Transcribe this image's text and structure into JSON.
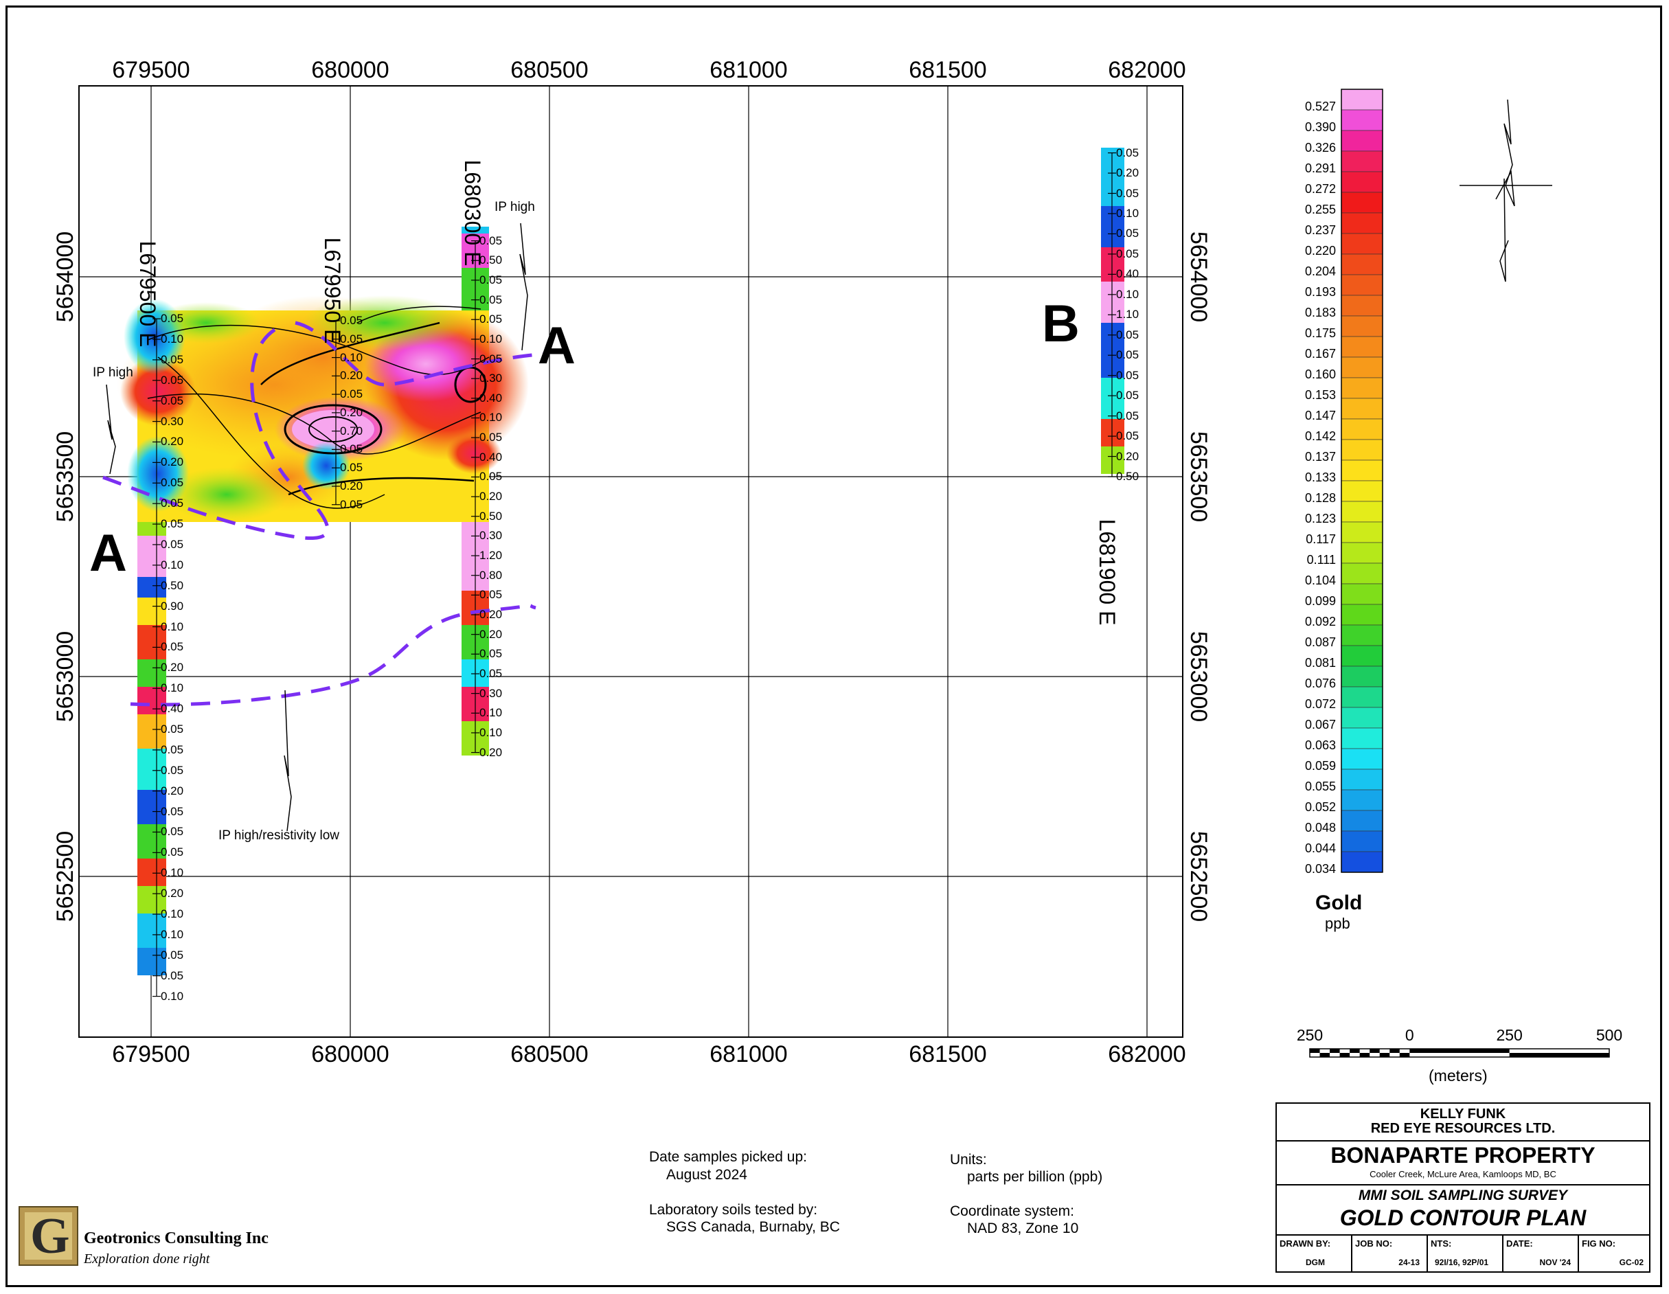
{
  "map": {
    "x_ticks": [
      "679500",
      "680000",
      "680500",
      "681000",
      "681500",
      "682000"
    ],
    "y_ticks": [
      "5654000",
      "5653500",
      "5653000",
      "5652500"
    ],
    "line_labels": [
      "L679500 E",
      "L679950 E",
      "L680300 E",
      "L681900 E"
    ],
    "section_labels": [
      "A",
      "A",
      "B"
    ],
    "annotations": [
      "IP high",
      "IP high",
      "IP high/resistivity low"
    ],
    "gridline_color": "#000000",
    "ip_line_color": "#7b2ff2",
    "lines": {
      "L679500": [
        "0.05",
        "0.10",
        "0.05",
        "0.05",
        "0.05",
        "0.30",
        "0.20",
        "0.20",
        "0.05",
        "0.05",
        "0.05",
        "0.05",
        "0.10",
        "0.50",
        "0.90",
        "0.10",
        "0.05",
        "0.20",
        "0.10",
        "0.40",
        "0.05",
        "0.05",
        "0.05",
        "0.20",
        "0.05",
        "0.05",
        "0.05",
        "0.10",
        "0.20",
        "0.10",
        "0.10",
        "0.05",
        "0.05",
        "0.10"
      ],
      "L679950": [
        "0.05",
        "0.05",
        "0.10",
        "0.20",
        "0.05",
        "0.20",
        "0.70",
        "0.05",
        "0.05",
        "0.20",
        "0.05"
      ],
      "L680300": [
        "0.05",
        "0.50",
        "0.05",
        "0.05",
        "0.05",
        "0.10",
        "0.05",
        "0.30",
        "0.40",
        "0.10",
        "0.05",
        "0.40",
        "0.05",
        "0.20",
        "0.50",
        "0.30",
        "1.20",
        "0.80",
        "0.05",
        "0.20",
        "0.20",
        "0.05",
        "0.05",
        "0.30",
        "0.10",
        "0.10",
        "0.20"
      ],
      "L681900": [
        "0.05",
        "0.20",
        "0.05",
        "0.10",
        "0.05",
        "0.05",
        "0.40",
        "0.10",
        "1.10",
        "0.05",
        "0.05",
        "0.05",
        "0.05",
        "0.05",
        "0.05",
        "0.20",
        "0.50"
      ]
    }
  },
  "legend": {
    "values": [
      "0.527",
      "0.390",
      "0.326",
      "0.291",
      "0.272",
      "0.255",
      "0.237",
      "0.220",
      "0.204",
      "0.193",
      "0.183",
      "0.175",
      "0.167",
      "0.160",
      "0.153",
      "0.147",
      "0.142",
      "0.137",
      "0.133",
      "0.128",
      "0.123",
      "0.117",
      "0.111",
      "0.104",
      "0.099",
      "0.092",
      "0.087",
      "0.081",
      "0.076",
      "0.072",
      "0.067",
      "0.063",
      "0.059",
      "0.055",
      "0.052",
      "0.048",
      "0.044",
      "0.034"
    ],
    "colors": [
      "#f7a6ee",
      "#f04fd8",
      "#f0259c",
      "#f0205c",
      "#f01a3c",
      "#f01a1a",
      "#f02a1a",
      "#f03a1a",
      "#f04b1a",
      "#f05a1a",
      "#f06a1a",
      "#f27a1a",
      "#f58a1a",
      "#f79a1a",
      "#f9aa1a",
      "#fbb91a",
      "#fcc61a",
      "#fdd21a",
      "#fde01a",
      "#f5e81a",
      "#e4ec1a",
      "#cdeb1a",
      "#b5e81a",
      "#9ce41a",
      "#7fde1a",
      "#5fd81a",
      "#3fd22a",
      "#22cc3a",
      "#1ccc60",
      "#1dd88c",
      "#1fe4b8",
      "#20ecdc",
      "#1ae0f4",
      "#18c4f0",
      "#16a6ea",
      "#1488e4",
      "#126ae0",
      "#1450e0"
    ],
    "title": "Gold",
    "unit": "ppb"
  },
  "scale_bar": {
    "labels": [
      "250",
      "0",
      "250",
      "500"
    ],
    "unit": "(meters)"
  },
  "notes": {
    "date_label": "Date samples picked up:",
    "date_value": "August 2024",
    "lab_label": "Laboratory soils tested by:",
    "lab_value": "SGS Canada, Burnaby, BC",
    "units_label": "Units:",
    "units_value": "parts per billion (ppb)",
    "coord_label": "Coordinate system:",
    "coord_value": "NAD 83, Zone 10"
  },
  "logo": {
    "letter": "G",
    "company": "Geotronics Consulting Inc",
    "tagline": "Exploration done right"
  },
  "title_block": {
    "client1": "KELLY FUNK",
    "client2": "RED EYE RESOURCES LTD.",
    "property": "BONAPARTE PROPERTY",
    "location": "Cooler Creek, McLure Area, Kamloops MD, BC",
    "survey": "MMI SOIL SAMPLING SURVEY",
    "plan": "GOLD CONTOUR PLAN",
    "drawn_by_label": "DRAWN BY:",
    "drawn_by": "DGM",
    "job_label": "JOB NO:",
    "job": "24-13",
    "nts_label": "NTS:",
    "nts": "92I/16, 92P/01",
    "date_label": "DATE:",
    "date": "NOV '24",
    "fig_label": "FIG NO:",
    "fig": "GC-02"
  }
}
